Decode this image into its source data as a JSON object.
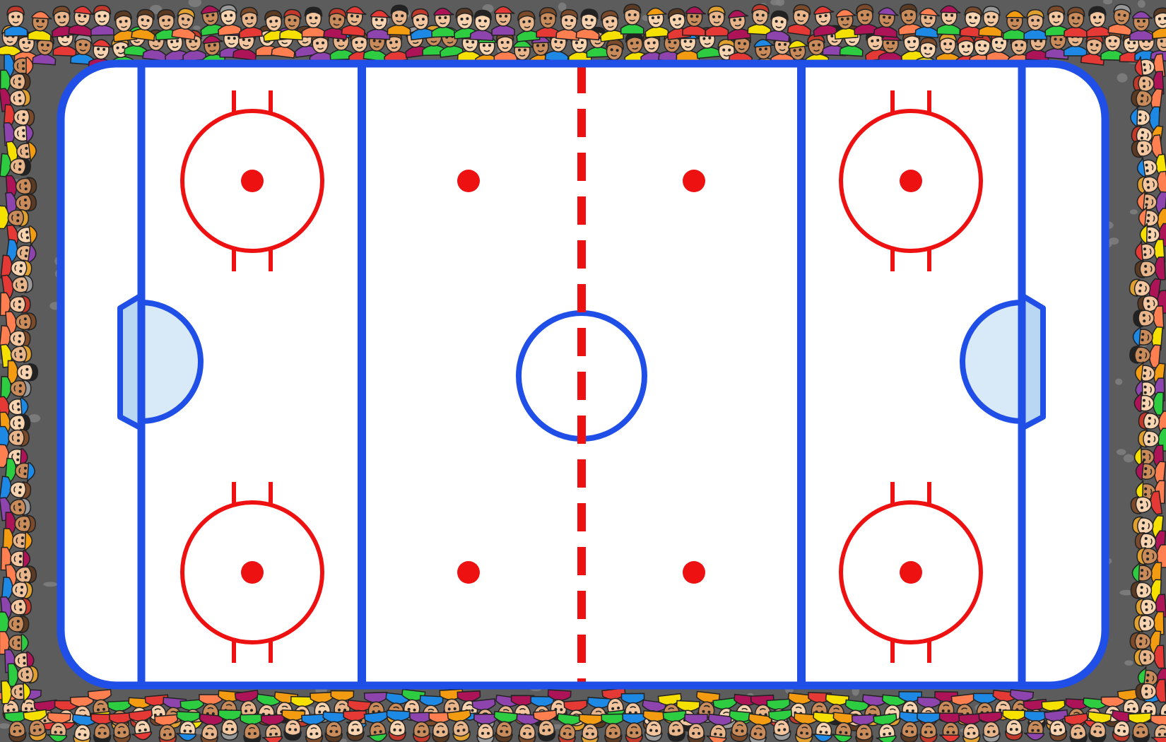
{
  "scene": {
    "kind": "ice-hockey-rink",
    "background": "crowd-of-spectators"
  },
  "colors": {
    "ice": "#ffffff",
    "boards": "#1f4fe6",
    "blue_lines": "#1f4fe6",
    "red_line": "#ee1111",
    "faceoff": "#ee1111",
    "goal_crease_fill": "#d8e9f8",
    "goal_net_fill": "#b9d7f3",
    "crowd_bg": "#5c5c5c",
    "crowd_shirts": [
      "#e53935",
      "#8e44ad",
      "#2ecc40",
      "#f6e000",
      "#f39c12",
      "#1e88e5",
      "#ff7f50",
      "#ad1457"
    ],
    "crowd_skin": [
      "#f7d3b0",
      "#e8b48a",
      "#c98b5a",
      "#f3c6a0"
    ],
    "crowd_hair": [
      "#5a3a22",
      "#c0392b",
      "#222222",
      "#e0a030",
      "#7a4a2a",
      "#999999"
    ]
  },
  "rink_elements": {
    "faceoff_circles": 4,
    "neutral_zone_dots": 4,
    "center_circle": 1,
    "goal_creases": 2,
    "blue_lines": 2,
    "goal_lines": 2,
    "center_line_style": "dashed"
  }
}
